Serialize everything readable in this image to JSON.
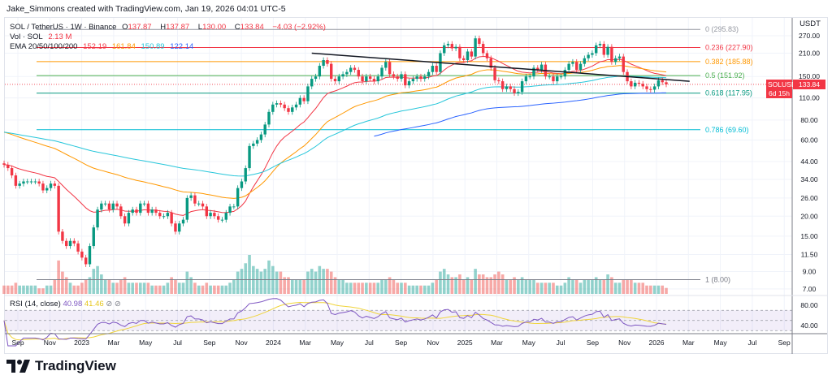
{
  "credit": "Jake_Simmons created with TradingView.com, Jan 19, 2026 04:01 UTC-5",
  "legend": {
    "symbol": "SOL / TetherUS · 1W · Binance",
    "open_label": "O",
    "open": "137.87",
    "high_label": "H",
    "high": "137.87",
    "low_label": "L",
    "low": "130.00",
    "close_label": "C",
    "close": "133.84",
    "change": "−4.03 (−2.92%)",
    "vol_label": "Vol · SOL",
    "vol": "2.13 M",
    "ema_label": "EMA 20/50/100/200",
    "ema20": "152.19",
    "ema50": "161.84",
    "ema100": "150.89",
    "ema200": "122.14"
  },
  "rsi_legend": {
    "label": "RSI (14, close)",
    "rsi": "40.98",
    "ma": "41.46"
  },
  "price_axis": {
    "currency": "USDT",
    "ticks": [
      "270.00",
      "210.00",
      "150.00",
      "110.00",
      "80.00",
      "60.00",
      "44.00",
      "34.00",
      "26.00",
      "20.00",
      "15.00",
      "11.50",
      "9.00",
      "7.00"
    ],
    "rsi_ticks": [
      "80.00",
      "40.00"
    ]
  },
  "last_price": {
    "symbol": "SOLUSDT",
    "price": "133.84",
    "countdown": "6d 15h"
  },
  "time_axis": [
    "Sep",
    "Nov",
    "2023",
    "Mar",
    "May",
    "Jul",
    "Sep",
    "Nov",
    "2024",
    "Mar",
    "May",
    "Jul",
    "Sep",
    "Nov",
    "2025",
    "Mar",
    "May",
    "Jul",
    "Sep",
    "Nov",
    "2026",
    "Mar",
    "May",
    "Jul",
    "Sep"
  ],
  "fib_levels": [
    {
      "label": "0 (295.83)",
      "price": 295.83,
      "color": "#9598a1"
    },
    {
      "label": "0.236 (227.90)",
      "price": 227.9,
      "color": "#f23645"
    },
    {
      "label": "0.382 (185.88)",
      "price": 185.88,
      "color": "#ff9800"
    },
    {
      "label": "0.5 (151.92)",
      "price": 151.92,
      "color": "#4caf50"
    },
    {
      "label": "0.618 (117.95)",
      "price": 117.95,
      "color": "#089981"
    },
    {
      "label": "0.786 (69.60)",
      "price": 69.6,
      "color": "#00bcd4"
    },
    {
      "label": "1 (8.00)",
      "price": 8.0,
      "color": "#787b86"
    }
  ],
  "trendline": {
    "start": {
      "week_index": 79,
      "price": 210
    },
    "end": {
      "week_index": 176,
      "price": 140
    }
  },
  "colors": {
    "up": "#089981",
    "down": "#f23645",
    "ema20": "#f23645",
    "ema50": "#ff9800",
    "ema100": "#26c6da",
    "ema200": "#2962ff",
    "rsi": "#7e57c2",
    "rsi_ma": "#f0d43a"
  },
  "logo_text": "TradingView",
  "chart_data": {
    "type": "candlestick",
    "title": "SOL / TetherUS · 1W · Binance",
    "ylabel": "USDT",
    "yscale": "log",
    "ylim": [
      6.5,
      330
    ],
    "x_start": "2022-08",
    "x_end": "2026-01-19",
    "closes": [
      42,
      40,
      36,
      31,
      32,
      33,
      33,
      33,
      33,
      32,
      29,
      30,
      32,
      31,
      16,
      14,
      13,
      14,
      13.5,
      12,
      11,
      10,
      13,
      17,
      22,
      24,
      24,
      22,
      24,
      23,
      20,
      18,
      21,
      22,
      21,
      24,
      24,
      21,
      22,
      21,
      20,
      20,
      21,
      18,
      16,
      18,
      19,
      26,
      27,
      24,
      24,
      23,
      20,
      21,
      20,
      19,
      19,
      21,
      23,
      23,
      30,
      33,
      40,
      55,
      57,
      60,
      65,
      75,
      90,
      100,
      102,
      100,
      95,
      90,
      96,
      100,
      110,
      105,
      130,
      145,
      150,
      175,
      190,
      180,
      145,
      140,
      150,
      155,
      160,
      170,
      165,
      150,
      140,
      150,
      145,
      140,
      150,
      170,
      185,
      155,
      150,
      145,
      155,
      132,
      140,
      145,
      150,
      145,
      150,
      160,
      175,
      160,
      210,
      235,
      240,
      225,
      230,
      195,
      190,
      215,
      200,
      260,
      240,
      210,
      195,
      170,
      142,
      140,
      125,
      130,
      125,
      118,
      120,
      140,
      150,
      150,
      170,
      165,
      178,
      150,
      150,
      140,
      150,
      150,
      165,
      180,
      185,
      165,
      180,
      195,
      205,
      210,
      235,
      240,
      205,
      230,
      185,
      195,
      200,
      160,
      140,
      130,
      137,
      135,
      130,
      125,
      124,
      130,
      142,
      138,
      133.84
    ],
    "volumes_m": [
      3,
      3,
      3,
      4,
      3,
      3,
      3,
      3,
      3,
      2,
      2,
      3,
      3,
      5,
      12,
      8,
      6,
      4,
      3,
      3,
      4,
      5,
      6,
      9,
      10,
      7,
      5,
      5,
      4,
      4,
      5,
      6,
      4,
      4,
      4,
      4,
      4,
      4,
      3,
      3,
      3,
      3,
      4,
      6,
      5,
      4,
      4,
      8,
      6,
      4,
      3,
      3,
      4,
      3,
      3,
      3,
      3,
      3,
      4,
      5,
      8,
      9,
      11,
      14,
      10,
      9,
      8,
      9,
      12,
      10,
      8,
      8,
      6,
      6,
      5,
      5,
      5,
      5,
      8,
      9,
      8,
      10,
      9,
      9,
      8,
      6,
      5,
      5,
      4,
      4,
      4,
      4,
      4,
      4,
      4,
      4,
      4,
      5,
      5,
      6,
      5,
      4,
      4,
      4,
      3,
      3,
      3,
      3,
      3,
      3,
      4,
      5,
      8,
      9,
      7,
      6,
      6,
      7,
      5,
      6,
      5,
      9,
      7,
      7,
      6,
      6,
      7,
      8,
      7,
      5,
      5,
      6,
      5,
      6,
      5,
      5,
      5,
      4,
      4,
      4,
      4,
      4,
      3,
      3,
      4,
      6,
      5,
      5,
      4,
      5,
      5,
      5,
      6,
      5,
      5,
      7,
      6,
      4,
      4,
      5,
      5,
      5,
      4,
      4,
      4,
      3,
      3,
      3,
      3,
      3,
      2.13
    ],
    "ema_periods": [
      20,
      50,
      100,
      200
    ],
    "rsi_period": 14,
    "rsi_levels": [
      70,
      50,
      30
    ]
  }
}
